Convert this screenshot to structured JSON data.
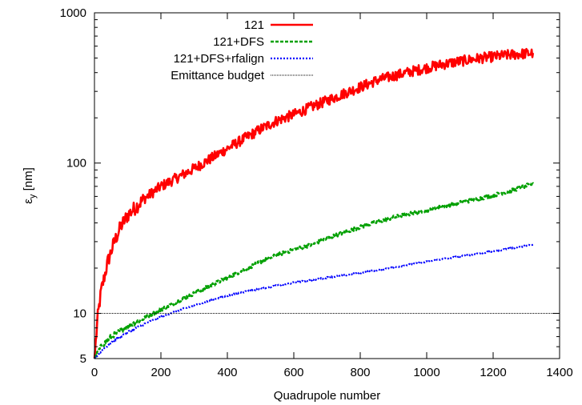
{
  "chart_data": {
    "type": "line",
    "title": "",
    "xlabel": "Quadrupole number",
    "ylabel_main": "ε",
    "ylabel_sub": "y",
    "ylabel_unit": " [nm]",
    "xlim": [
      0,
      1400
    ],
    "ylim": [
      5,
      1000
    ],
    "yscale": "log",
    "xticks": [
      "0",
      "200",
      "400",
      "600",
      "800",
      "1000",
      "1200",
      "1400"
    ],
    "yticks": [
      "5",
      "10",
      "100",
      "1000"
    ],
    "grid": false,
    "legend_position": "top-right",
    "series": [
      {
        "name": "121",
        "color": "#ff0000",
        "style": "solid",
        "x": [
          0,
          10,
          20,
          40,
          60,
          80,
          100,
          150,
          200,
          250,
          300,
          350,
          400,
          450,
          500,
          550,
          600,
          650,
          700,
          750,
          800,
          850,
          900,
          950,
          1000,
          1050,
          1100,
          1150,
          1200,
          1250,
          1320
        ],
        "y": [
          5,
          9.5,
          14,
          22,
          30,
          38,
          45,
          58,
          70,
          80,
          92,
          107,
          125,
          145,
          168,
          192,
          210,
          235,
          260,
          290,
          320,
          355,
          380,
          405,
          430,
          455,
          475,
          495,
          510,
          525,
          540
        ]
      },
      {
        "name": "121+DFS",
        "color": "#00a000",
        "style": "dashed",
        "x": [
          0,
          20,
          50,
          100,
          150,
          200,
          250,
          300,
          350,
          400,
          450,
          500,
          550,
          600,
          650,
          700,
          750,
          800,
          850,
          900,
          950,
          1000,
          1050,
          1100,
          1150,
          1200,
          1250,
          1320
        ],
        "y": [
          5,
          6,
          7,
          8.2,
          9.3,
          10.6,
          12,
          13.6,
          15.3,
          17.3,
          19.5,
          22,
          24.5,
          26.5,
          28.5,
          31.5,
          34.5,
          37.5,
          40.5,
          43.5,
          46,
          48.5,
          51.5,
          54.5,
          57.5,
          61,
          65,
          73
        ]
      },
      {
        "name": "121+DFS+rfalign",
        "color": "#0000ff",
        "style": "dotted",
        "x": [
          0,
          20,
          50,
          100,
          150,
          200,
          250,
          300,
          350,
          400,
          450,
          500,
          550,
          600,
          650,
          700,
          750,
          800,
          850,
          900,
          950,
          1000,
          1050,
          1100,
          1150,
          1200,
          1250,
          1320
        ],
        "y": [
          5,
          5.6,
          6.4,
          7.5,
          8.5,
          9.5,
          10.4,
          11.3,
          12.2,
          13.1,
          13.9,
          14.6,
          15.3,
          16,
          16.6,
          17.3,
          17.9,
          18.6,
          19.4,
          20.2,
          21.1,
          22,
          23,
          23.9,
          24.9,
          25.9,
          27,
          28.6
        ]
      },
      {
        "name": "Emittance budget",
        "color": "#000000",
        "style": "finedot",
        "x": [
          0,
          1400
        ],
        "y": [
          10,
          10
        ]
      }
    ]
  }
}
